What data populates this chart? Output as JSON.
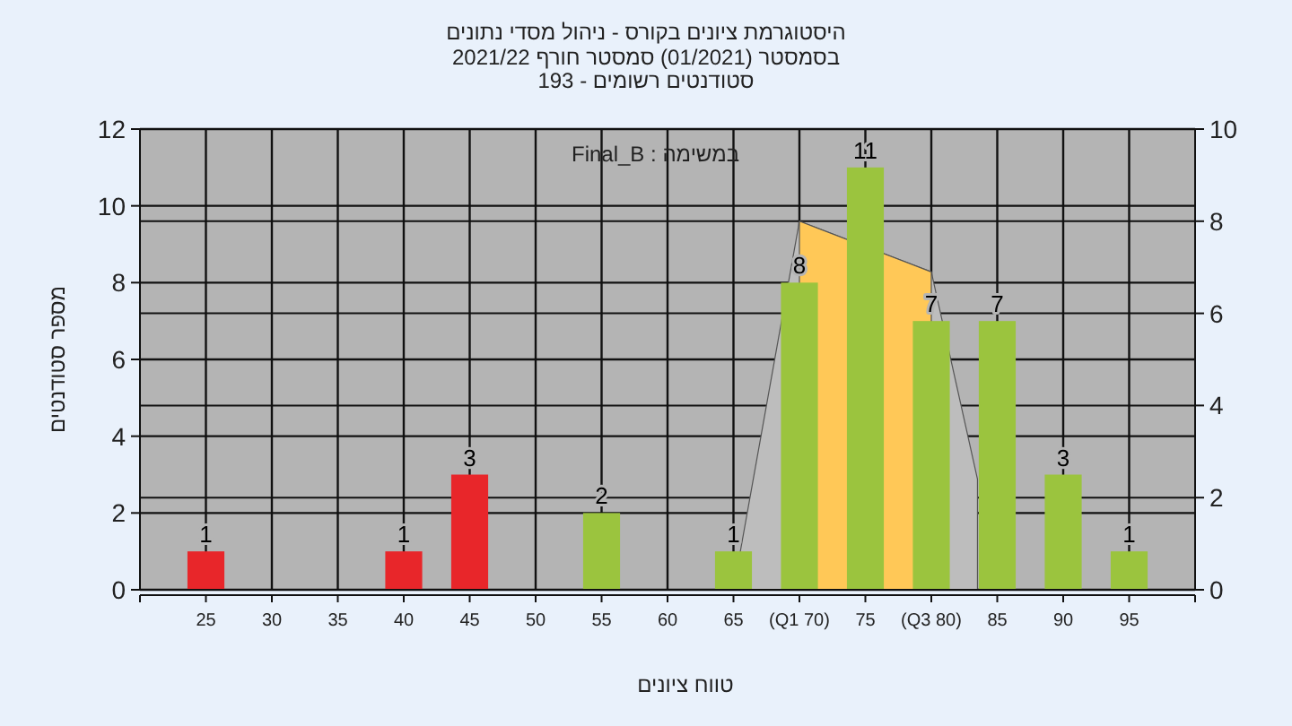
{
  "chart_data": {
    "type": "bar",
    "title": "היסטוגרמת ציונים בקורס - ניהול מסדי נתונים",
    "subtitle": "בסמסטר  (01/2021)  סמסטר חורף 2021/22\nסטודנטים רשומים - 193",
    "xlabel": "טווח ציונים",
    "ylabel": "מספר סטודנטים",
    "annotations": [
      "Final_B : במשימה"
    ],
    "x": [
      25,
      40,
      45,
      55,
      65,
      70,
      75,
      80,
      85,
      90,
      95
    ],
    "series": [
      {
        "type": "area",
        "axis": "y2",
        "color": "#bdbdbd",
        "x": [
          65,
          70,
          75,
          80,
          83.5
        ],
        "values": [
          0,
          8,
          null,
          6.9,
          2.4
        ]
      },
      {
        "type": "area",
        "axis": "y2",
        "color": "#ffc857",
        "x": [
          70,
          75,
          80
        ],
        "values": [
          8,
          null,
          6.9
        ]
      },
      {
        "values": [
          1,
          1,
          3,
          2,
          1,
          8,
          11,
          7,
          7,
          3,
          1
        ],
        "value_labels": [
          "1",
          "1",
          "3",
          "2",
          "1",
          "8",
          "11",
          "7",
          "7",
          "3",
          "1"
        ],
        "colors": [
          "#e8262a",
          "#e8262a",
          "#e8262a",
          "#9bc43e",
          "#9bc43e",
          "#9bc43e",
          "#9bc43e",
          "#9bc43e",
          "#9bc43e",
          "#9bc43e",
          "#9bc43e"
        ]
      }
    ],
    "grid": true,
    "xlim": [
      20,
      100
    ],
    "xticks": [
      25,
      30,
      35,
      40,
      45,
      50,
      55,
      60,
      65,
      {
        "value": 70,
        "label": "(Q1 70)"
      },
      75,
      {
        "value": 80,
        "label": "(Q3 80)"
      },
      85,
      90,
      95
    ],
    "ylim": [
      0,
      12
    ],
    "yticks": [
      0,
      2,
      4,
      6,
      8,
      10,
      12
    ],
    "y2lim": [
      0,
      10
    ],
    "y2ticks": [
      0,
      2,
      4,
      6,
      8,
      10
    ]
  }
}
